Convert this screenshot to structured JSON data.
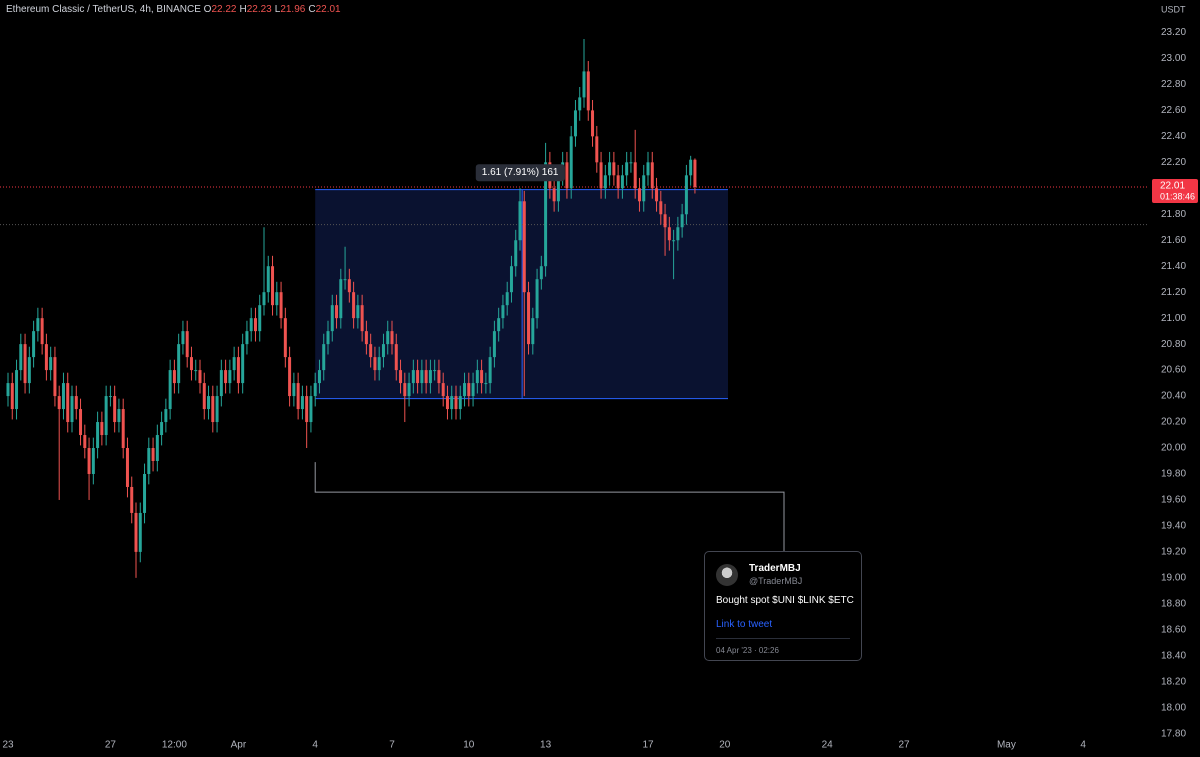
{
  "chart_data": {
    "type": "candlestick",
    "title": "Ethereum Classic / TetherUS, 4h, BINANCE",
    "ohlc": [
      {
        "label": "O",
        "value": 22.22
      },
      {
        "label": "H",
        "value": 22.23
      },
      {
        "label": "L",
        "value": 21.96
      },
      {
        "label": "C",
        "value": 22.01
      }
    ],
    "y_axis_label": "USDT",
    "up_color": "#26a69a",
    "down_color": "#ef5350",
    "measure_color": "#2962ff",
    "price_line_color": "#f23645",
    "grid": false,
    "x": [
      0,
      4,
      8,
      12,
      16,
      20,
      24,
      28,
      32,
      36,
      40,
      44,
      48,
      52,
      56,
      60,
      64,
      68,
      72,
      76,
      80,
      84,
      88,
      92,
      96,
      100,
      104,
      108,
      112,
      116,
      120,
      124,
      128,
      132,
      136,
      140,
      144,
      148,
      152,
      156,
      160,
      164,
      168,
      172,
      176,
      180,
      184,
      188,
      192,
      196,
      200,
      204,
      208,
      212,
      216,
      220,
      224,
      228,
      232,
      236,
      240,
      244,
      248,
      252,
      256,
      260,
      264,
      268,
      272,
      276,
      280,
      284,
      288,
      292,
      296,
      300,
      304,
      308,
      312,
      316,
      320,
      324,
      328,
      332,
      336,
      340,
      344,
      348,
      352,
      356,
      360,
      364,
      368,
      372,
      376,
      380,
      384,
      388,
      392,
      396,
      400,
      404,
      408,
      412,
      416,
      420,
      424,
      428,
      432,
      436,
      440,
      444,
      448,
      452,
      456,
      460,
      464,
      468,
      472,
      476,
      480,
      484,
      488,
      492,
      496,
      500,
      504,
      508,
      512,
      516,
      520,
      524,
      528,
      532,
      536,
      540,
      544,
      548,
      552,
      556,
      560,
      564,
      568,
      572,
      576,
      580,
      584,
      588,
      592,
      596,
      600,
      604,
      608,
      612,
      616,
      620,
      624,
      628,
      632,
      636,
      640,
      644
    ],
    "open": [
      20.4,
      20.5,
      20.3,
      20.6,
      20.8,
      20.5,
      20.7,
      20.9,
      21.0,
      20.8,
      20.6,
      20.7,
      20.4,
      20.3,
      20.5,
      20.2,
      20.4,
      20.3,
      20.1,
      20.0,
      19.8,
      20.0,
      20.2,
      20.1,
      20.4,
      20.4,
      20.2,
      20.3,
      20.0,
      19.7,
      19.5,
      19.2,
      19.5,
      19.8,
      20.0,
      19.9,
      20.1,
      20.2,
      20.3,
      20.6,
      20.5,
      20.8,
      20.9,
      20.7,
      20.6,
      20.6,
      20.5,
      20.3,
      20.4,
      20.2,
      20.4,
      20.6,
      20.5,
      20.6,
      20.7,
      20.5,
      20.8,
      20.9,
      21.0,
      20.9,
      21.1,
      21.2,
      21.4,
      21.1,
      21.2,
      21.0,
      20.7,
      20.4,
      20.5,
      20.3,
      20.4,
      20.2,
      20.4,
      20.5,
      20.6,
      20.8,
      20.9,
      21.1,
      21.0,
      21.3,
      21.3,
      21.2,
      21.0,
      21.1,
      20.9,
      20.8,
      20.7,
      20.6,
      20.7,
      20.8,
      20.9,
      20.8,
      20.6,
      20.5,
      20.4,
      20.5,
      20.6,
      20.5,
      20.6,
      20.5,
      20.6,
      20.6,
      20.5,
      20.4,
      20.3,
      20.4,
      20.3,
      20.4,
      20.5,
      20.4,
      20.5,
      20.6,
      20.5,
      20.5,
      20.7,
      20.9,
      21.0,
      21.1,
      21.2,
      21.4,
      21.6,
      21.9,
      21.2,
      20.8,
      21.0,
      21.3,
      21.4,
      22.2,
      22.0,
      21.9,
      22.1,
      22.2,
      22.0,
      22.4,
      22.6,
      22.7,
      22.9,
      22.6,
      22.4,
      22.2,
      22.0,
      22.1,
      22.2,
      22.1,
      22.0,
      22.1,
      22.2,
      22.2,
      22.0,
      21.9,
      22.1,
      22.2,
      22.0,
      21.9,
      21.8,
      21.7,
      21.6,
      21.6,
      21.7,
      21.8,
      22.1,
      22.22
    ],
    "high": [
      20.58,
      20.58,
      20.68,
      20.88,
      20.88,
      20.78,
      20.98,
      21.08,
      21.08,
      20.88,
      20.78,
      20.78,
      20.48,
      20.58,
      20.58,
      20.48,
      20.48,
      20.38,
      20.18,
      20.08,
      20.08,
      20.28,
      20.28,
      20.48,
      20.48,
      20.48,
      20.38,
      20.38,
      20.08,
      19.78,
      19.58,
      19.58,
      19.88,
      20.08,
      20.08,
      20.18,
      20.28,
      20.38,
      20.68,
      20.68,
      20.88,
      20.98,
      20.98,
      20.78,
      20.68,
      20.68,
      20.58,
      20.48,
      20.48,
      20.48,
      20.68,
      20.68,
      20.68,
      20.78,
      20.78,
      20.88,
      20.98,
      21.08,
      21.08,
      21.18,
      21.7,
      21.48,
      21.48,
      21.28,
      21.28,
      21.08,
      20.78,
      20.58,
      20.58,
      20.48,
      20.48,
      20.48,
      20.58,
      20.68,
      20.88,
      20.98,
      21.18,
      21.18,
      21.38,
      21.55,
      21.38,
      21.28,
      21.18,
      21.18,
      20.98,
      20.88,
      20.78,
      20.78,
      20.88,
      20.98,
      20.98,
      20.88,
      20.68,
      20.58,
      20.58,
      20.68,
      20.68,
      20.68,
      20.68,
      20.68,
      20.68,
      20.68,
      20.58,
      20.48,
      20.48,
      20.48,
      20.48,
      20.58,
      20.58,
      20.58,
      20.68,
      20.68,
      20.58,
      20.78,
      20.98,
      21.08,
      21.18,
      21.28,
      21.48,
      21.68,
      22.0,
      21.98,
      21.28,
      21.08,
      21.38,
      21.48,
      22.35,
      22.28,
      22.08,
      22.18,
      22.28,
      22.28,
      22.48,
      22.68,
      22.78,
      23.15,
      22.98,
      22.68,
      22.48,
      22.28,
      22.18,
      22.28,
      22.28,
      22.18,
      22.18,
      22.28,
      22.28,
      22.45,
      22.08,
      22.18,
      22.28,
      22.28,
      22.08,
      21.98,
      21.88,
      21.78,
      21.68,
      21.78,
      21.88,
      22.18,
      22.25,
      22.23
    ],
    "low": [
      20.32,
      20.22,
      20.22,
      20.52,
      20.42,
      20.42,
      20.62,
      20.82,
      20.72,
      20.52,
      20.52,
      20.32,
      19.6,
      20.22,
      20.12,
      20.12,
      20.22,
      20.02,
      19.92,
      19.6,
      19.72,
      19.92,
      20.02,
      20.02,
      20.32,
      20.12,
      20.12,
      19.92,
      19.62,
      19.42,
      19.0,
      19.12,
      19.42,
      19.72,
      19.82,
      19.82,
      20.02,
      20.12,
      20.22,
      20.42,
      20.42,
      20.72,
      20.62,
      20.52,
      20.52,
      20.42,
      20.22,
      20.22,
      20.12,
      20.12,
      20.32,
      20.42,
      20.42,
      20.52,
      20.42,
      20.42,
      20.72,
      20.82,
      20.82,
      20.82,
      21.02,
      21.12,
      21.02,
      21.02,
      20.92,
      20.62,
      20.32,
      20.32,
      20.22,
      20.22,
      20.0,
      20.12,
      20.32,
      20.42,
      20.52,
      20.72,
      20.82,
      20.92,
      20.92,
      21.22,
      21.12,
      20.92,
      20.92,
      20.82,
      20.72,
      20.62,
      20.52,
      20.52,
      20.62,
      20.72,
      20.72,
      20.52,
      20.42,
      20.2,
      20.32,
      20.42,
      20.42,
      20.42,
      20.42,
      20.42,
      20.52,
      20.42,
      20.32,
      20.22,
      20.22,
      20.22,
      20.22,
      20.32,
      20.32,
      20.32,
      20.42,
      20.42,
      20.42,
      20.42,
      20.62,
      20.82,
      20.92,
      21.02,
      21.12,
      21.32,
      21.52,
      20.4,
      20.72,
      20.72,
      20.92,
      21.22,
      21.32,
      21.92,
      21.82,
      21.82,
      22.02,
      21.92,
      21.92,
      22.32,
      22.52,
      22.62,
      22.52,
      22.32,
      22.12,
      21.92,
      21.92,
      22.02,
      22.02,
      21.92,
      21.92,
      22.02,
      22.12,
      21.92,
      21.82,
      21.82,
      22.02,
      21.92,
      21.82,
      21.72,
      21.48,
      21.52,
      21.3,
      21.52,
      21.62,
      21.72,
      22.02,
      21.96
    ],
    "close": [
      20.5,
      20.3,
      20.6,
      20.8,
      20.5,
      20.7,
      20.9,
      21.0,
      20.8,
      20.6,
      20.7,
      20.4,
      20.3,
      20.5,
      20.2,
      20.4,
      20.3,
      20.1,
      20.0,
      19.8,
      20.0,
      20.2,
      20.1,
      20.4,
      20.4,
      20.2,
      20.3,
      20.0,
      19.7,
      19.5,
      19.2,
      19.5,
      19.8,
      20.0,
      19.9,
      20.1,
      20.2,
      20.3,
      20.6,
      20.5,
      20.8,
      20.9,
      20.7,
      20.6,
      20.6,
      20.5,
      20.3,
      20.4,
      20.2,
      20.4,
      20.6,
      20.5,
      20.6,
      20.7,
      20.5,
      20.8,
      20.9,
      21.0,
      20.9,
      21.1,
      21.2,
      21.4,
      21.1,
      21.2,
      21.0,
      20.7,
      20.4,
      20.5,
      20.3,
      20.4,
      20.2,
      20.4,
      20.5,
      20.6,
      20.8,
      20.9,
      21.1,
      21.0,
      21.3,
      21.3,
      21.2,
      21.0,
      21.1,
      20.9,
      20.8,
      20.7,
      20.6,
      20.7,
      20.8,
      20.9,
      20.8,
      20.6,
      20.5,
      20.4,
      20.5,
      20.6,
      20.5,
      20.6,
      20.5,
      20.6,
      20.6,
      20.5,
      20.4,
      20.3,
      20.4,
      20.3,
      20.4,
      20.5,
      20.4,
      20.5,
      20.6,
      20.5,
      20.5,
      20.7,
      20.9,
      21.0,
      21.1,
      21.2,
      21.4,
      21.6,
      21.9,
      21.2,
      20.8,
      21.0,
      21.3,
      21.4,
      22.2,
      22.0,
      21.9,
      22.1,
      22.2,
      22.0,
      22.4,
      22.6,
      22.7,
      22.9,
      22.6,
      22.4,
      22.2,
      22.0,
      22.1,
      22.2,
      22.1,
      22.0,
      22.1,
      22.2,
      22.2,
      22.0,
      21.9,
      22.1,
      22.2,
      22.0,
      21.9,
      21.8,
      21.7,
      21.6,
      21.6,
      21.7,
      21.8,
      22.1,
      22.22,
      22.01
    ],
    "xlim": [
      -7.5,
      1068.75
    ],
    "xticks": [
      {
        "value": 0,
        "label": "23"
      },
      {
        "value": 96,
        "label": "27"
      },
      {
        "value": 156,
        "label": "12:00"
      },
      {
        "value": 216,
        "label": "Apr"
      },
      {
        "value": 288,
        "label": "4"
      },
      {
        "value": 360,
        "label": "7"
      },
      {
        "value": 432,
        "label": "10"
      },
      {
        "value": 504,
        "label": "13"
      },
      {
        "value": 600,
        "label": "17"
      },
      {
        "value": 672,
        "label": "20"
      },
      {
        "value": 768,
        "label": "24"
      },
      {
        "value": 840,
        "label": "27"
      },
      {
        "value": 936,
        "label": "May"
      },
      {
        "value": 1008,
        "label": "4"
      }
    ],
    "ylim": [
      17.79,
      23.45
    ],
    "yticks": [
      {
        "value": 17.8,
        "label": "17.80"
      },
      {
        "value": 18,
        "label": "18.00"
      },
      {
        "value": 18.2,
        "label": "18.20"
      },
      {
        "value": 18.4,
        "label": "18.40"
      },
      {
        "value": 18.6,
        "label": "18.60"
      },
      {
        "value": 18.8,
        "label": "18.80"
      },
      {
        "value": 19,
        "label": "19.00"
      },
      {
        "value": 19.2,
        "label": "19.20"
      },
      {
        "value": 19.4,
        "label": "19.40"
      },
      {
        "value": 19.6,
        "label": "19.60"
      },
      {
        "value": 19.8,
        "label": "19.80"
      },
      {
        "value": 20,
        "label": "20.00"
      },
      {
        "value": 20.2,
        "label": "20.20"
      },
      {
        "value": 20.4,
        "label": "20.40"
      },
      {
        "value": 20.6,
        "label": "20.60"
      },
      {
        "value": 20.8,
        "label": "20.80"
      },
      {
        "value": 21,
        "label": "21.00"
      },
      {
        "value": 21.2,
        "label": "21.20"
      },
      {
        "value": 21.4,
        "label": "21.40"
      },
      {
        "value": 21.6,
        "label": "21.60"
      },
      {
        "value": 21.8,
        "label": "21.80"
      },
      {
        "value": 22,
        "label": "22.00"
      },
      {
        "value": 22.2,
        "label": "22.20"
      },
      {
        "value": 22.4,
        "label": "22.40"
      },
      {
        "value": 22.6,
        "label": "22.60"
      },
      {
        "value": 22.8,
        "label": "22.80"
      },
      {
        "value": 23,
        "label": "23.00"
      },
      {
        "value": 23.2,
        "label": "23.20"
      }
    ],
    "last_price": {
      "value": 22.01,
      "countdown": "01:38:46"
    },
    "hline": 21.72,
    "measure": {
      "label": "1.61 (7.91%) 161",
      "x_start": 288,
      "x_end": 675,
      "x_mark": 482,
      "low": 20.38,
      "high": 21.99
    },
    "callout": {
      "x": 288,
      "price": 19.66,
      "x_end": 727.5
    }
  },
  "tweet": {
    "author": "TraderMBJ",
    "handle": "@TraderMBJ",
    "text": "Bought spot $UNI $LINK $ETC",
    "link": "Link to tweet",
    "date": "04 Apr '23 · 02:26"
  }
}
